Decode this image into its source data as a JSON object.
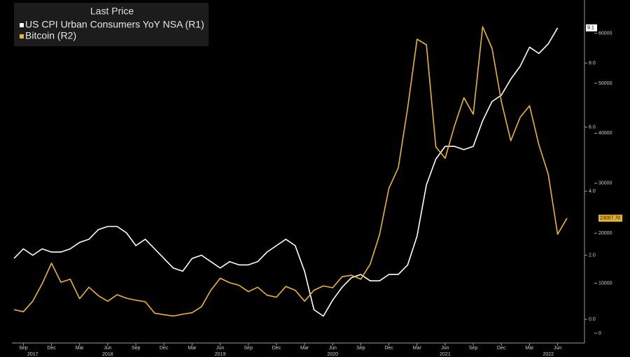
{
  "chart_data": {
    "type": "line",
    "legend_title": "Last Price",
    "legend_position": "top-left",
    "categories": [
      null,
      "Sep",
      null,
      null,
      "Dec",
      null,
      null,
      "Mar",
      null,
      null,
      "Jun",
      null,
      null,
      "Sep",
      null,
      null,
      "Dec",
      null,
      null,
      "Mar",
      null,
      null,
      "Jun",
      null,
      null,
      "Sep",
      null,
      null,
      "Dec",
      null,
      null,
      "Mar",
      null,
      null,
      "Jun",
      null,
      null,
      "Sep",
      null,
      null,
      "Dec",
      null,
      null,
      "Mar",
      null,
      null,
      "Jun",
      null,
      null,
      "Sep",
      null,
      null,
      "Dec",
      null,
      null,
      "Mar",
      null,
      null,
      "Jun",
      null
    ],
    "year_categories": [
      null,
      null,
      "2017",
      null,
      null,
      null,
      null,
      null,
      null,
      null,
      "2018",
      null,
      null,
      null,
      null,
      null,
      null,
      null,
      null,
      null,
      null,
      null,
      "2019",
      null,
      null,
      null,
      null,
      null,
      null,
      null,
      null,
      null,
      null,
      null,
      "2020",
      null,
      null,
      null,
      null,
      null,
      null,
      null,
      null,
      null,
      null,
      null,
      "2021",
      null,
      null,
      null,
      null,
      null,
      null,
      null,
      null,
      null,
      null,
      "2022",
      null,
      null,
      null,
      null
    ],
    "series": [
      {
        "name": "US CPI Urban Consumers YoY NSA  (R1)",
        "color": "#ffffff",
        "axis": "y",
        "values": [
          1.9,
          2.2,
          2.0,
          2.2,
          2.1,
          2.1,
          2.2,
          2.4,
          2.5,
          2.8,
          2.9,
          2.9,
          2.7,
          2.3,
          2.5,
          2.2,
          1.9,
          1.6,
          1.5,
          1.9,
          2.0,
          1.8,
          1.6,
          1.8,
          1.7,
          1.7,
          1.8,
          2.1,
          2.3,
          2.5,
          2.3,
          1.5,
          0.3,
          0.1,
          0.6,
          1.0,
          1.3,
          1.4,
          1.2,
          1.2,
          1.4,
          1.4,
          1.7,
          2.6,
          4.2,
          5.0,
          5.4,
          5.4,
          5.3,
          5.4,
          6.2,
          6.8,
          7.0,
          7.5,
          7.9,
          8.5,
          8.3,
          8.6,
          9.1,
          null
        ]
      },
      {
        "name": "Bitcoin  (R2)",
        "color": "#e8b730",
        "axis": "y2",
        "values": [
          4700,
          4300,
          6400,
          9900,
          14000,
          10200,
          10800,
          6900,
          9200,
          7500,
          6400,
          7700,
          7000,
          6600,
          6300,
          4000,
          3700,
          3450,
          3800,
          4100,
          5300,
          8600,
          11000,
          10100,
          9600,
          8300,
          9200,
          7600,
          7200,
          9350,
          8600,
          6400,
          8600,
          9450,
          9100,
          11300,
          11600,
          10800,
          13800,
          19700,
          29000,
          33100,
          45100,
          58800,
          57700,
          37300,
          35000,
          41500,
          47100,
          43800,
          61300,
          57000,
          46300,
          38500,
          43200,
          45500,
          37700,
          31800,
          19800,
          23007.7
        ],
        "value_labels": [
          null,
          null,
          null,
          null,
          null,
          null,
          null,
          null,
          null,
          null,
          null,
          null,
          null,
          null,
          null,
          null,
          null,
          null,
          null,
          null,
          null,
          null,
          null,
          null,
          null,
          null,
          null,
          null,
          null,
          null,
          null,
          null,
          null,
          null,
          null,
          null,
          null,
          null,
          null,
          null,
          null,
          null,
          null,
          null,
          null,
          null,
          null,
          null,
          null,
          null,
          null,
          null,
          null,
          null,
          null,
          null,
          null,
          null,
          null,
          "23007.70"
        ]
      }
    ],
    "ylim": [
      -0.74,
      9.97
    ],
    "yticks": [
      {
        "value": 0,
        "label": "0.0"
      },
      {
        "value": 2,
        "label": "2.0"
      },
      {
        "value": 4,
        "label": "4.0"
      },
      {
        "value": 6,
        "label": "6.0"
      },
      {
        "value": 8,
        "label": "8.0"
      }
    ],
    "y2lim": [
      -1960,
      66660
    ],
    "y2ticks": [
      0,
      10000,
      20000,
      30000,
      40000,
      50000,
      60000
    ],
    "grid": false
  }
}
